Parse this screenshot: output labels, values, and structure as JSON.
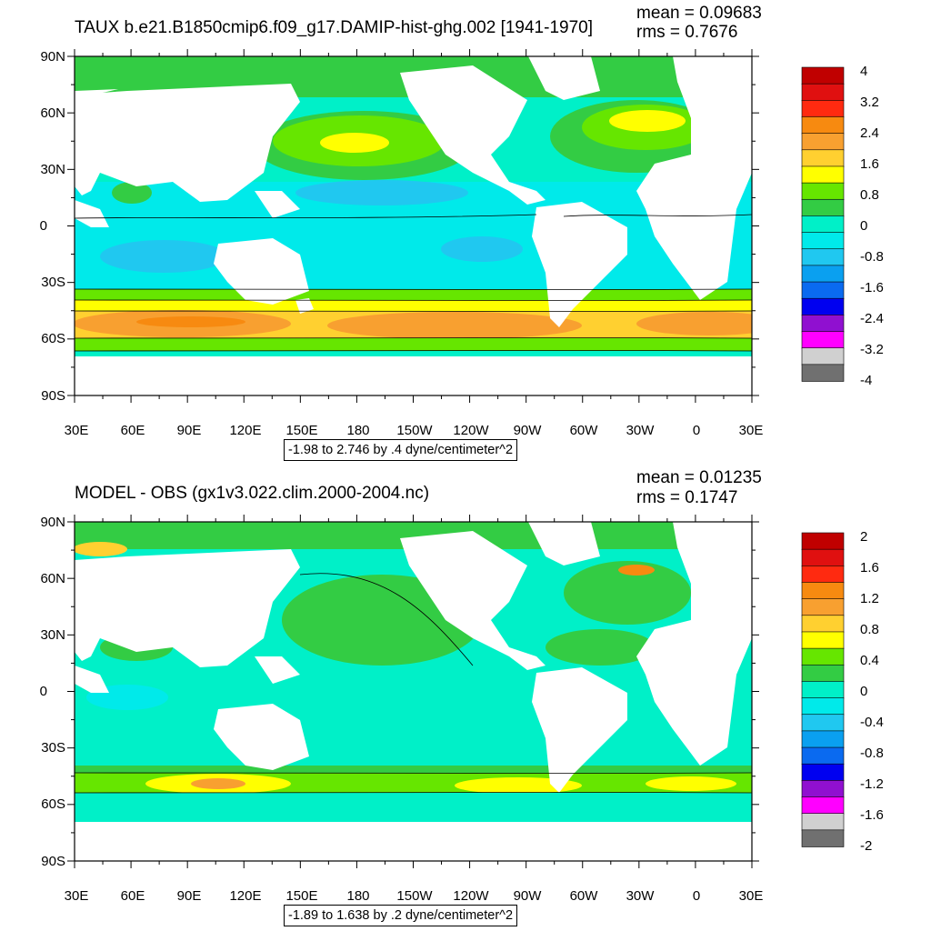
{
  "panels": [
    {
      "title": "TAUX b.e21.B1850cmip6.f09_g17.DAMIP-hist-ghg.002 [1941-1970]",
      "mean": "mean = 0.09683",
      "rms": "rms = 0.7676",
      "range_label": "-1.98 to 2.746 by .4 dyne/centimeter^2",
      "colorbar_labels": [
        "4",
        "3.2",
        "2.4",
        "1.6",
        "0.8",
        "0",
        "-0.8",
        "-1.6",
        "-2.4",
        "-3.2",
        "-4"
      ]
    },
    {
      "title": "MODEL - OBS (gx1v3.022.clim.2000-2004.nc)",
      "mean": "mean = 0.01235",
      "rms": "rms = 0.1747",
      "range_label": "-1.89 to 1.638 by .2 dyne/centimeter^2",
      "colorbar_labels": [
        "2",
        "1.6",
        "1.2",
        "0.8",
        "0.4",
        "0",
        "-0.4",
        "-0.8",
        "-1.2",
        "-1.6",
        "-2"
      ]
    }
  ],
  "lon_labels": [
    "30E",
    "60E",
    "90E",
    "120E",
    "150E",
    "180",
    "150W",
    "120W",
    "90W",
    "60W",
    "30W",
    "0",
    "30E"
  ],
  "lat_labels": [
    "90N",
    "60N",
    "30N",
    "0",
    "30S",
    "60S",
    "90S"
  ],
  "colorbar_colors": [
    "#c00000",
    "#e01010",
    "#ff2a10",
    "#f78a10",
    "#f8a030",
    "#ffd030",
    "#ffff00",
    "#66e600",
    "#33cc44",
    "#00f0c8",
    "#00eaea",
    "#20c8f0",
    "#0aa0f0",
    "#0a6af0",
    "#0000f0",
    "#9010d0",
    "#ff00ff",
    "#d0d0d0",
    "#707070"
  ],
  "colors": {
    "land": "#ffffff",
    "ocean_base": "#00f0c8"
  },
  "chart_data": [
    {
      "type": "heatmap",
      "title": "TAUX b.e21.B1850cmip6.f09_g17.DAMIP-hist-ghg.002 [1941-1970]",
      "xlabel": "",
      "ylabel": "",
      "x_ticks": [
        "30E",
        "60E",
        "90E",
        "120E",
        "150E",
        "180",
        "150W",
        "120W",
        "90W",
        "60W",
        "30W",
        "0",
        "30E"
      ],
      "y_ticks": [
        "90N",
        "60N",
        "30N",
        "0",
        "30S",
        "60S",
        "90S"
      ],
      "colorbar_levels": [
        4,
        3.2,
        2.4,
        1.6,
        0.8,
        0,
        -0.8,
        -1.6,
        -2.4,
        -3.2,
        -4
      ],
      "mean": 0.09683,
      "rms": 0.7676,
      "contour_min": -1.98,
      "contour_max": 2.746,
      "contour_interval": 0.4,
      "units": "dyne/centimeter^2"
    },
    {
      "type": "heatmap",
      "title": "MODEL - OBS (gx1v3.022.clim.2000-2004.nc)",
      "xlabel": "",
      "ylabel": "",
      "x_ticks": [
        "30E",
        "60E",
        "90E",
        "120E",
        "150E",
        "180",
        "150W",
        "120W",
        "90W",
        "60W",
        "30W",
        "0",
        "30E"
      ],
      "y_ticks": [
        "90N",
        "60N",
        "30N",
        "0",
        "30S",
        "60S",
        "90S"
      ],
      "colorbar_levels": [
        2,
        1.6,
        1.2,
        0.8,
        0.4,
        0,
        -0.4,
        -0.8,
        -1.2,
        -1.6,
        -2
      ],
      "mean": 0.01235,
      "rms": 0.1747,
      "contour_min": -1.89,
      "contour_max": 1.638,
      "contour_interval": 0.2,
      "units": "dyne/centimeter^2"
    }
  ]
}
